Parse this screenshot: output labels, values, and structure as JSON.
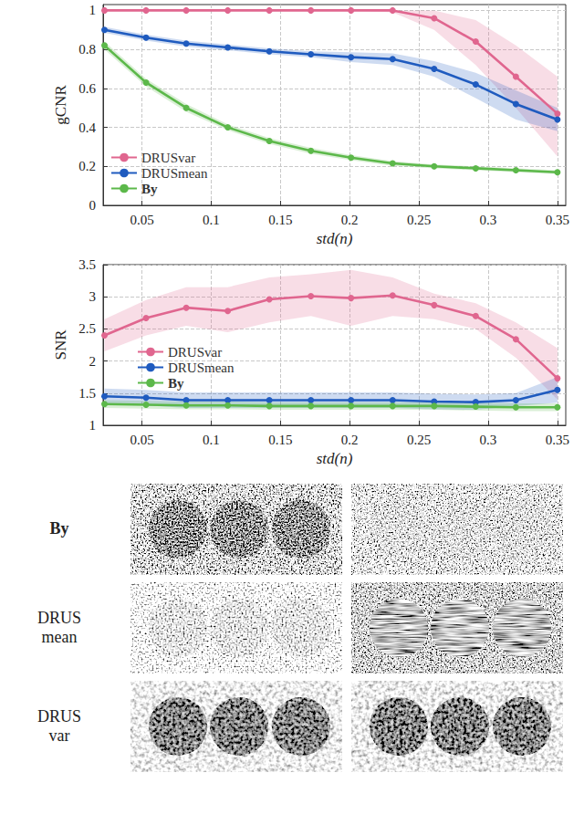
{
  "chart_data": [
    {
      "type": "line",
      "x_label": "std(n)",
      "y_label": "gCNR",
      "x": [
        0.023,
        0.053,
        0.082,
        0.112,
        0.142,
        0.172,
        0.201,
        0.231,
        0.261,
        0.291,
        0.32,
        0.35
      ],
      "xlim": [
        0.022,
        0.356
      ],
      "xticks": [
        0.05,
        0.1,
        0.15,
        0.2,
        0.25,
        0.3,
        0.35
      ],
      "ylim": [
        0,
        1.03
      ],
      "yticks": [
        0,
        0.2,
        0.4,
        0.6,
        0.8,
        1
      ],
      "grid": true,
      "legend": "lower left",
      "marker": "circle",
      "series": [
        {
          "name": "DRUSvar",
          "color": "#e0668f",
          "values": [
            1,
            1,
            1,
            1,
            1,
            1,
            1,
            1,
            0.96,
            0.84,
            0.66,
            0.47
          ],
          "lower": [
            1,
            1,
            1,
            1,
            1,
            1,
            1,
            0.99,
            0.9,
            0.72,
            0.5,
            0.25
          ],
          "upper": [
            1,
            1,
            1,
            1,
            1,
            1,
            1,
            1,
            1,
            0.95,
            0.82,
            0.66
          ]
        },
        {
          "name": "DRUSmean",
          "color": "#1f5bbf",
          "values": [
            0.9,
            0.86,
            0.83,
            0.81,
            0.79,
            0.775,
            0.76,
            0.75,
            0.7,
            0.62,
            0.52,
            0.44
          ],
          "lower": [
            0.885,
            0.845,
            0.815,
            0.795,
            0.775,
            0.76,
            0.735,
            0.72,
            0.66,
            0.55,
            0.44,
            0.38
          ],
          "upper": [
            0.915,
            0.875,
            0.845,
            0.825,
            0.805,
            0.79,
            0.785,
            0.78,
            0.74,
            0.68,
            0.59,
            0.5
          ]
        },
        {
          "name": "By",
          "color": "#5cb84a",
          "values": [
            0.82,
            0.63,
            0.5,
            0.4,
            0.33,
            0.28,
            0.245,
            0.215,
            0.2,
            0.19,
            0.18,
            0.17
          ],
          "lower": [
            0.8,
            0.61,
            0.48,
            0.385,
            0.315,
            0.265,
            0.232,
            0.203,
            0.19,
            0.18,
            0.17,
            0.16
          ],
          "upper": [
            0.84,
            0.65,
            0.52,
            0.415,
            0.345,
            0.295,
            0.258,
            0.227,
            0.21,
            0.2,
            0.19,
            0.18
          ]
        }
      ]
    },
    {
      "type": "line",
      "x_label": "std(n)",
      "y_label": "SNR",
      "x": [
        0.023,
        0.053,
        0.082,
        0.112,
        0.142,
        0.172,
        0.201,
        0.231,
        0.261,
        0.291,
        0.32,
        0.35
      ],
      "xlim": [
        0.022,
        0.356
      ],
      "xticks": [
        0.05,
        0.1,
        0.15,
        0.2,
        0.25,
        0.3,
        0.35
      ],
      "ylim": [
        1,
        3.5
      ],
      "yticks": [
        1,
        1.5,
        2,
        2.5,
        3,
        3.5
      ],
      "grid": true,
      "legend": "left",
      "marker": "circle",
      "series": [
        {
          "name": "DRUSvar",
          "color": "#e0668f",
          "values": [
            2.4,
            2.67,
            2.83,
            2.78,
            2.96,
            3.01,
            2.98,
            3.02,
            2.87,
            2.7,
            2.34,
            1.73
          ],
          "lower": [
            2.15,
            2.4,
            2.55,
            2.45,
            2.6,
            2.7,
            2.55,
            2.7,
            2.65,
            2.5,
            2.05,
            1.4
          ],
          "upper": [
            2.65,
            2.95,
            3.15,
            3.15,
            3.3,
            3.35,
            3.42,
            3.3,
            3.05,
            2.9,
            2.6,
            2.2
          ]
        },
        {
          "name": "DRUSmean",
          "color": "#1f5bbf",
          "values": [
            1.45,
            1.43,
            1.39,
            1.39,
            1.39,
            1.39,
            1.39,
            1.39,
            1.37,
            1.36,
            1.39,
            1.55
          ],
          "lower": [
            1.33,
            1.31,
            1.27,
            1.27,
            1.27,
            1.27,
            1.27,
            1.27,
            1.25,
            1.24,
            1.3,
            1.35
          ],
          "upper": [
            1.57,
            1.55,
            1.51,
            1.51,
            1.51,
            1.51,
            1.51,
            1.51,
            1.49,
            1.48,
            1.5,
            1.75
          ]
        },
        {
          "name": "By",
          "color": "#5cb84a",
          "values": [
            1.33,
            1.32,
            1.31,
            1.31,
            1.3,
            1.3,
            1.3,
            1.3,
            1.3,
            1.29,
            1.28,
            1.28
          ],
          "lower": [
            1.27,
            1.26,
            1.25,
            1.25,
            1.24,
            1.24,
            1.24,
            1.24,
            1.24,
            1.23,
            1.22,
            1.22
          ],
          "upper": [
            1.39,
            1.38,
            1.37,
            1.37,
            1.36,
            1.36,
            1.36,
            1.36,
            1.36,
            1.35,
            1.34,
            1.34
          ]
        }
      ]
    }
  ],
  "image_grid": {
    "row_labels": [
      "By",
      "DRUS mean",
      "DRUS var"
    ],
    "columns": 2
  }
}
